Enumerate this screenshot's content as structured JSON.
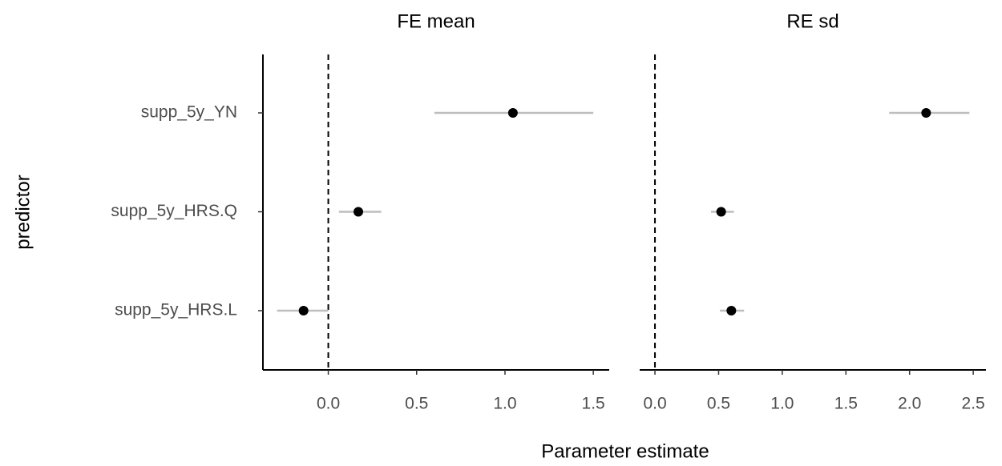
{
  "chart_data": [
    {
      "type": "pointrange",
      "title": "FE mean",
      "ylabel": "predictor",
      "xlabel": "Parameter estimate",
      "categories": [
        "supp_5y_HRS.L",
        "supp_5y_HRS.Q",
        "supp_5y_YN"
      ],
      "values": [
        -0.14,
        0.17,
        1.045
      ],
      "lower": [
        -0.29,
        0.06,
        0.6
      ],
      "upper": [
        0.0,
        0.3,
        1.5
      ],
      "color": "#000000",
      "whisker_color": "#bebebe",
      "reference_line": 0,
      "xlim": [
        -0.37,
        1.59
      ],
      "xticks": [
        {
          "value": 0,
          "label": "0.0"
        },
        0.5,
        {
          "value": 1,
          "label": "1.0"
        },
        1.5
      ]
    },
    {
      "type": "pointrange",
      "title": "RE sd",
      "values": [
        0.6,
        0.52,
        2.13
      ],
      "lower": [
        0.51,
        0.44,
        1.84
      ],
      "upper": [
        0.7,
        0.62,
        2.47
      ],
      "color": "#000000",
      "whisker_color": "#bebebe",
      "reference_line": 0,
      "xlim": [
        -0.12,
        2.6
      ],
      "xticks": [
        {
          "value": 0,
          "label": "0.0"
        },
        0.5,
        {
          "value": 1,
          "label": "1.0"
        },
        1.5,
        {
          "value": 2,
          "label": "2.0"
        },
        2.5
      ]
    }
  ]
}
